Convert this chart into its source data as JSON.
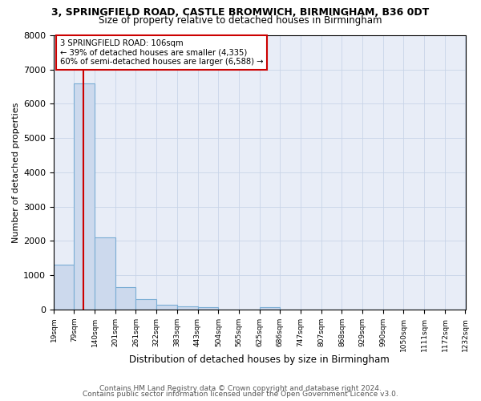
{
  "title1": "3, SPRINGFIELD ROAD, CASTLE BROMWICH, BIRMINGHAM, B36 0DT",
  "title2": "Size of property relative to detached houses in Birmingham",
  "xlabel": "Distribution of detached houses by size in Birmingham",
  "ylabel": "Number of detached properties",
  "footer1": "Contains HM Land Registry data © Crown copyright and database right 2024.",
  "footer2": "Contains public sector information licensed under the Open Government Licence v3.0.",
  "property_size": 106,
  "annotation_line1": "3 SPRINGFIELD ROAD: 106sqm",
  "annotation_line2": "← 39% of detached houses are smaller (4,335)",
  "annotation_line3": "60% of semi-detached houses are larger (6,588) →",
  "bin_edges": [
    19,
    79,
    140,
    201,
    261,
    322,
    383,
    443,
    504,
    565,
    625,
    686,
    747,
    807,
    868,
    929,
    990,
    1050,
    1111,
    1172,
    1232
  ],
  "bar_heights": [
    1300,
    6600,
    2100,
    650,
    300,
    150,
    100,
    80,
    10,
    5,
    80,
    3,
    2,
    2,
    1,
    1,
    0,
    0,
    0,
    0
  ],
  "bar_color": "#ccd9ed",
  "bar_edgecolor": "#7aadd4",
  "vline_color": "#cc0000",
  "annotation_box_edgecolor": "#cc0000",
  "annotation_box_facecolor": "#ffffff",
  "grid_color": "#c8d4e8",
  "bg_color": "#e8edf7",
  "ylim": [
    0,
    8000
  ],
  "yticks": [
    0,
    1000,
    2000,
    3000,
    4000,
    5000,
    6000,
    7000,
    8000
  ]
}
